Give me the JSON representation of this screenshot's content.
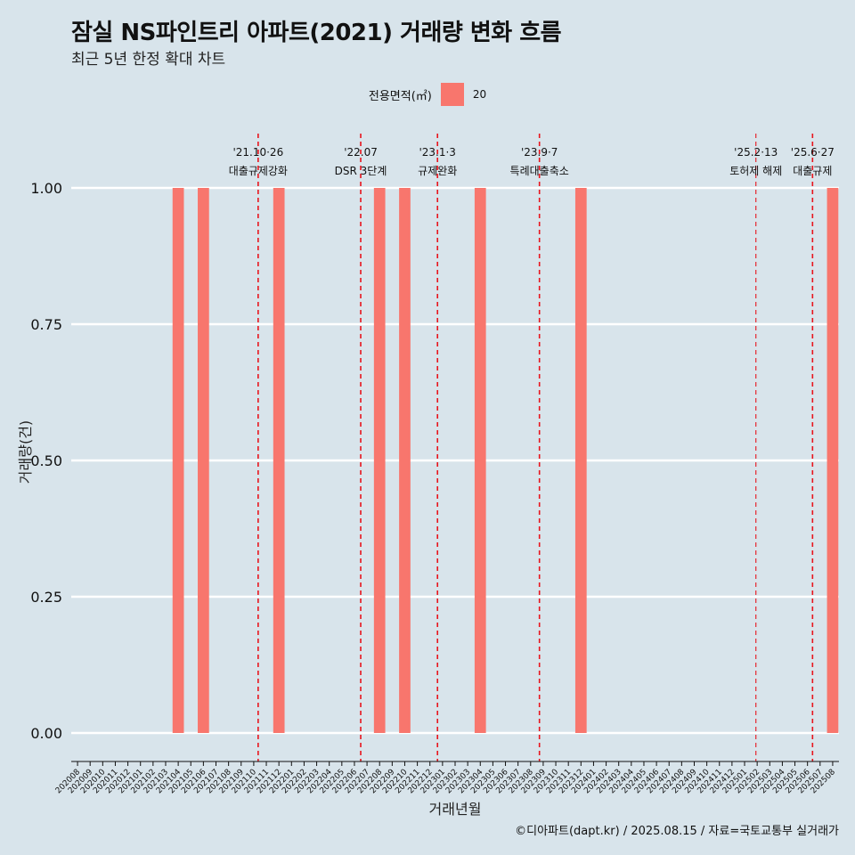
{
  "header": {
    "title": "잠실 NS파인트리 아파트(2021) 거래량 변화 흐름",
    "subtitle": "최근 5년 한정 확대 차트"
  },
  "legend": {
    "title": "전용면적(㎡)",
    "items": [
      {
        "label": "20",
        "color": "#f8766d"
      }
    ]
  },
  "caption": "©디아파트(dapt.kr) / 2025.08.15 / 자료=국토교통부 실거래가",
  "chart_data": {
    "type": "bar",
    "xlabel": "거래년월",
    "ylabel": "거래량(건)",
    "ylim": [
      0,
      1
    ],
    "yticks": [
      "0.00",
      "0.25",
      "0.50",
      "0.75",
      "1.00"
    ],
    "grid": true,
    "legend_position": "top",
    "categories": [
      "202008",
      "202009",
      "202010",
      "202011",
      "202012",
      "202101",
      "202102",
      "202103",
      "202104",
      "202105",
      "202106",
      "202107",
      "202108",
      "202109",
      "202110",
      "202111",
      "202112",
      "202201",
      "202202",
      "202203",
      "202204",
      "202205",
      "202206",
      "202207",
      "202208",
      "202209",
      "202210",
      "202211",
      "202212",
      "202301",
      "202302",
      "202303",
      "202304",
      "202305",
      "202306",
      "202307",
      "202308",
      "202309",
      "202310",
      "202311",
      "202312",
      "202401",
      "202402",
      "202403",
      "202404",
      "202405",
      "202406",
      "202407",
      "202408",
      "202409",
      "202410",
      "202411",
      "202412",
      "202501",
      "202502",
      "202503",
      "202504",
      "202505",
      "202506",
      "202507",
      "202508"
    ],
    "series": [
      {
        "name": "20",
        "color": "#f8766d",
        "values": [
          0,
          0,
          0,
          0,
          0,
          0,
          0,
          0,
          1,
          0,
          1,
          0,
          0,
          0,
          0,
          0,
          1,
          0,
          0,
          0,
          0,
          0,
          0,
          0,
          1,
          0,
          1,
          0,
          0,
          0,
          0,
          0,
          1,
          0,
          0,
          0,
          0,
          0,
          0,
          0,
          1,
          0,
          0,
          0,
          0,
          0,
          0,
          0,
          0,
          0,
          0,
          0,
          0,
          0,
          0,
          0,
          0,
          0,
          0,
          0,
          1
        ]
      }
    ],
    "events": [
      {
        "date_label": "'21.10·26",
        "text": "대출규제강화",
        "at": "202110",
        "offset": 0.85,
        "bold": true
      },
      {
        "date_label": "'22.07",
        "text": "DSR 3단계",
        "at": "202207",
        "offset": 0.0,
        "bold": true
      },
      {
        "date_label": "'23.1·3",
        "text": "규제완화",
        "at": "202301",
        "offset": 0.1,
        "bold": true
      },
      {
        "date_label": "'23.9·7",
        "text": "특례대출축소",
        "at": "202309",
        "offset": 0.2,
        "bold": true
      },
      {
        "date_label": "'25.2·13",
        "text": "토허제 해제",
        "at": "202502",
        "offset": 0.4,
        "bold": false
      },
      {
        "date_label": "'25.6·27",
        "text": "대출규제",
        "at": "202506",
        "offset": 0.9,
        "bold": true
      }
    ]
  }
}
